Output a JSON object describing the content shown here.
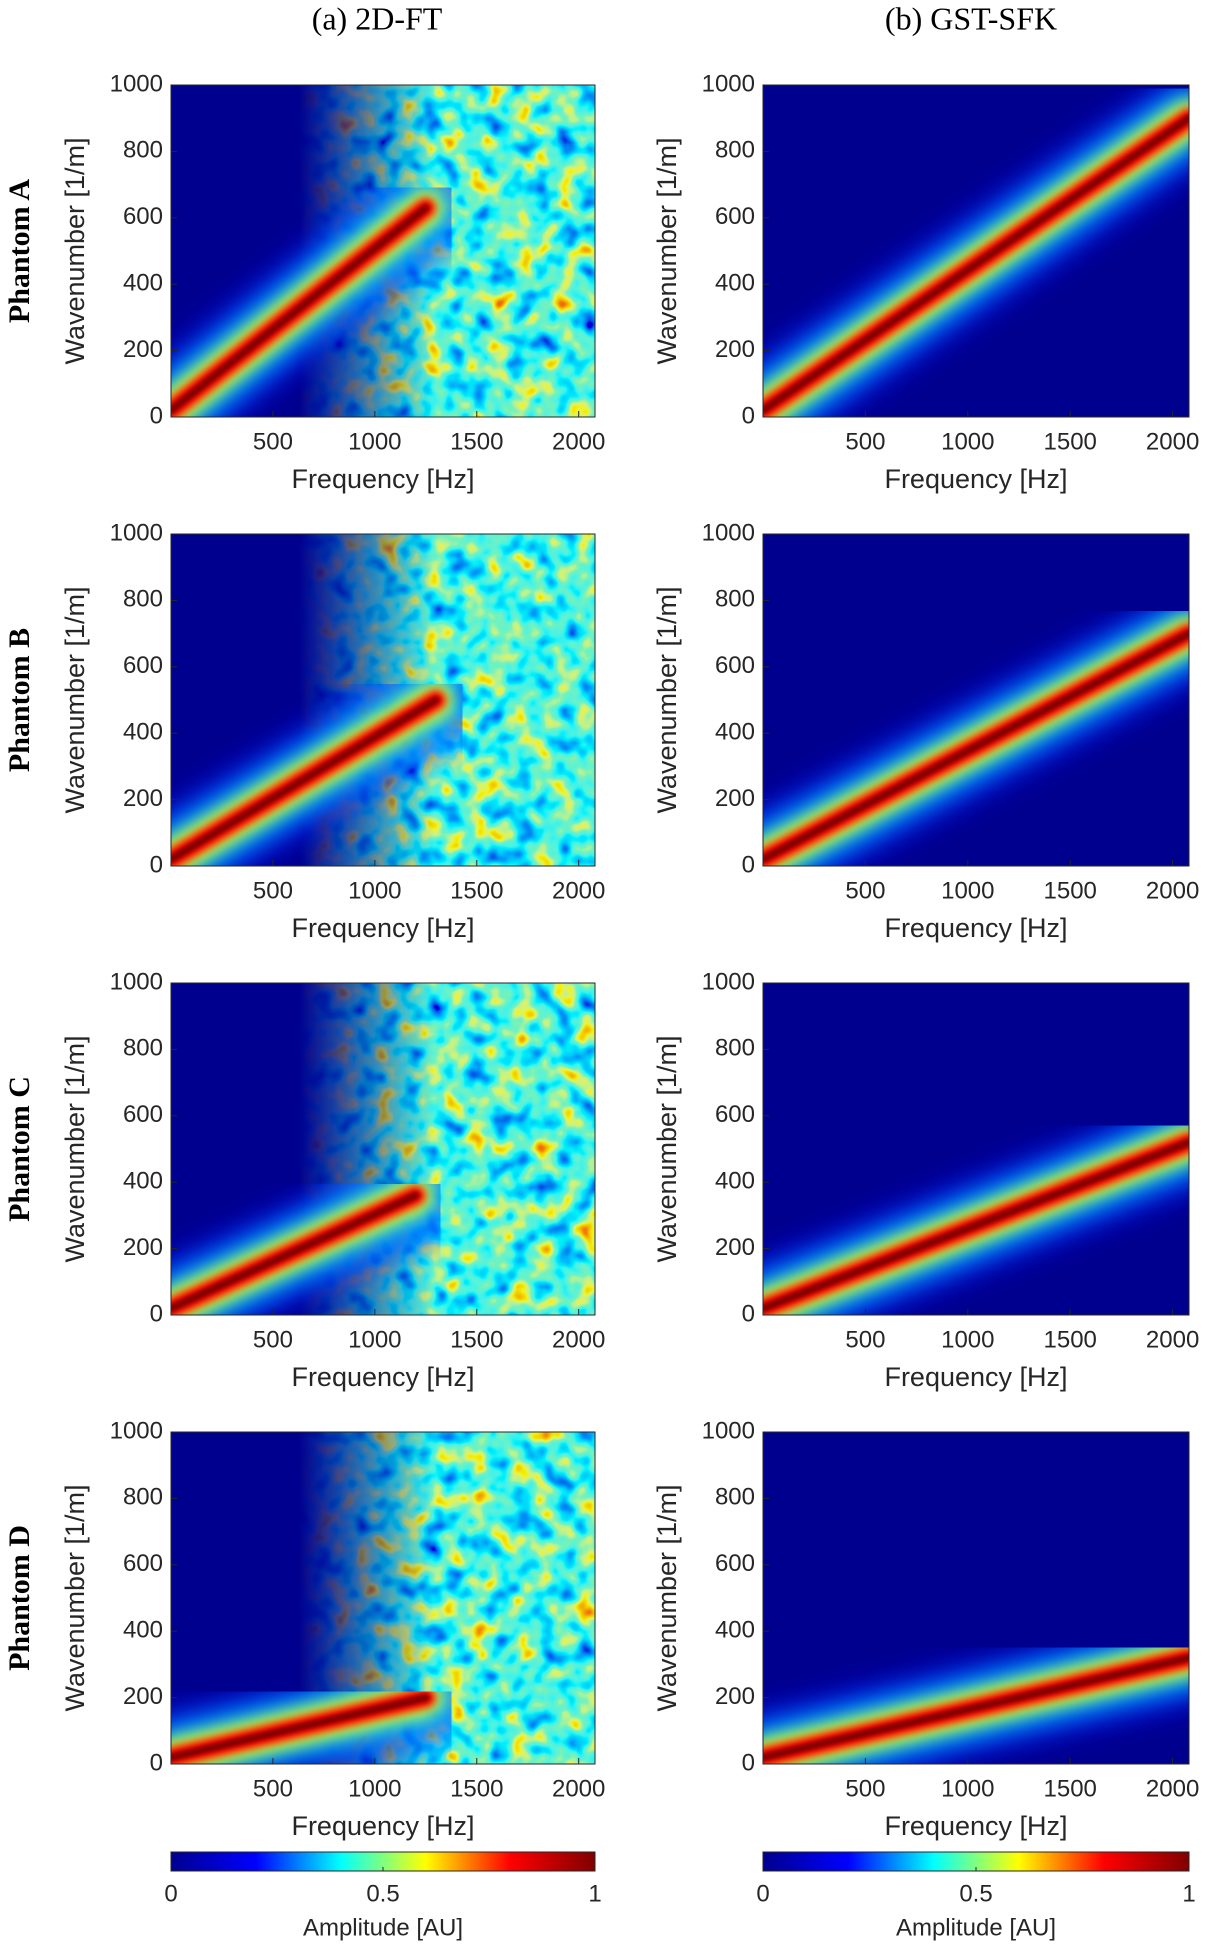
{
  "column_titles": [
    "(a)  2D-FT",
    "(b)  GST-SFK"
  ],
  "row_labels": [
    "Phantom A",
    "Phantom B",
    "Phantom C",
    "Phantom D"
  ],
  "colormap": [
    "#00008f",
    "#0000ff",
    "#00ffff",
    "#ffff00",
    "#ff0000",
    "#800000"
  ],
  "chart_data": [
    {
      "type": "heatmap",
      "xlabel": "Frequency [Hz]",
      "ylabel": "Wavenumber [1/m]",
      "xlim": [
        0,
        2080
      ],
      "ylim": [
        0,
        1000
      ],
      "xticks": [
        500,
        1000,
        1500,
        2000
      ],
      "yticks": [
        0,
        200,
        400,
        600,
        800,
        1000
      ],
      "ridge": {
        "x": [
          0,
          1250
        ],
        "y": [
          20,
          630
        ]
      }
    },
    {
      "type": "heatmap",
      "xlabel": "Frequency [Hz]",
      "ylabel": "Wavenumber [1/m]",
      "xlim": [
        0,
        2080
      ],
      "ylim": [
        0,
        1000
      ],
      "xticks": [
        500,
        1000,
        1500,
        2000
      ],
      "yticks": [
        0,
        200,
        400,
        600,
        800,
        1000
      ],
      "ridge": {
        "x": [
          0,
          2080
        ],
        "y": [
          20,
          900
        ]
      }
    },
    {
      "type": "heatmap",
      "xlabel": "Frequency [Hz]",
      "ylabel": "Wavenumber [1/m]",
      "xlim": [
        0,
        2080
      ],
      "ylim": [
        0,
        1000
      ],
      "xticks": [
        500,
        1000,
        1500,
        2000
      ],
      "yticks": [
        0,
        200,
        400,
        600,
        800,
        1000
      ],
      "ridge": {
        "x": [
          0,
          1300
        ],
        "y": [
          20,
          500
        ]
      }
    },
    {
      "type": "heatmap",
      "xlabel": "Frequency [Hz]",
      "ylabel": "Wavenumber [1/m]",
      "xlim": [
        0,
        2080
      ],
      "ylim": [
        0,
        1000
      ],
      "xticks": [
        500,
        1000,
        1500,
        2000
      ],
      "yticks": [
        0,
        200,
        400,
        600,
        800,
        1000
      ],
      "ridge": {
        "x": [
          0,
          2080
        ],
        "y": [
          20,
          700
        ]
      }
    },
    {
      "type": "heatmap",
      "xlabel": "Frequency [Hz]",
      "ylabel": "Wavenumber [1/m]",
      "xlim": [
        0,
        2080
      ],
      "ylim": [
        0,
        1000
      ],
      "xticks": [
        500,
        1000,
        1500,
        2000
      ],
      "yticks": [
        0,
        200,
        400,
        600,
        800,
        1000
      ],
      "ridge": {
        "x": [
          0,
          1200
        ],
        "y": [
          20,
          360
        ]
      }
    },
    {
      "type": "heatmap",
      "xlabel": "Frequency [Hz]",
      "ylabel": "Wavenumber [1/m]",
      "xlim": [
        0,
        2080
      ],
      "ylim": [
        0,
        1000
      ],
      "xticks": [
        500,
        1000,
        1500,
        2000
      ],
      "yticks": [
        0,
        200,
        400,
        600,
        800,
        1000
      ],
      "ridge": {
        "x": [
          0,
          2080
        ],
        "y": [
          20,
          520
        ]
      }
    },
    {
      "type": "heatmap",
      "xlabel": "Frequency [Hz]",
      "ylabel": "Wavenumber [1/m]",
      "xlim": [
        0,
        2080
      ],
      "ylim": [
        0,
        1000
      ],
      "xticks": [
        500,
        1000,
        1500,
        2000
      ],
      "yticks": [
        0,
        200,
        400,
        600,
        800,
        1000
      ],
      "ridge": {
        "x": [
          0,
          1250
        ],
        "y": [
          20,
          200
        ]
      }
    },
    {
      "type": "heatmap",
      "xlabel": "Frequency [Hz]",
      "ylabel": "Wavenumber [1/m]",
      "xlim": [
        0,
        2080
      ],
      "ylim": [
        0,
        1000
      ],
      "xticks": [
        500,
        1000,
        1500,
        2000
      ],
      "yticks": [
        0,
        200,
        400,
        600,
        800,
        1000
      ],
      "ridge": {
        "x": [
          0,
          2080
        ],
        "y": [
          20,
          320
        ]
      }
    }
  ],
  "colorbars": [
    {
      "label": "Amplitude [AU]",
      "lim": [
        0,
        1
      ],
      "ticks": [
        0,
        0.5,
        1
      ]
    },
    {
      "label": "Amplitude [AU]",
      "lim": [
        0,
        1
      ],
      "ticks": [
        0,
        0.5,
        1
      ]
    }
  ]
}
